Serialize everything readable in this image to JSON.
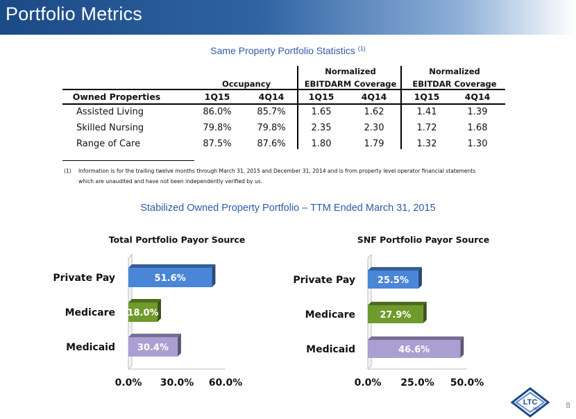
{
  "header": {
    "title": "Portfolio Metrics"
  },
  "stats": {
    "title": "Same Property Portfolio Statistics",
    "title_note": "(1)",
    "group_headers": {
      "occupancy": "Occupancy",
      "ebitdarm_line1": "Normalized",
      "ebitdarm_line2": "EBITDARM Coverage",
      "ebitdar_line1": "Normalized",
      "ebitdar_line2": "EBITDAR Coverage"
    },
    "columns": [
      "Owned Properties",
      "1Q15",
      "4Q14",
      "1Q15",
      "4Q14",
      "1Q15",
      "4Q14"
    ],
    "rows": [
      [
        "Assisted Living",
        "86.0%",
        "85.7%",
        "1.65",
        "1.62",
        "1.41",
        "1.39"
      ],
      [
        "Skilled Nursing",
        "79.8%",
        "79.8%",
        "2.35",
        "2.30",
        "1.72",
        "1.68"
      ],
      [
        "Range of Care",
        "87.5%",
        "87.6%",
        "1.80",
        "1.79",
        "1.32",
        "1.30"
      ]
    ],
    "footnote_marker": "(1)",
    "footnote_line1": "Information is for the trailing twelve months through March 31, 2015 and December 31, 2014 and is from property level operator financial statements",
    "footnote_line2": "which are unaudited and have not been independently verified by us."
  },
  "stabilized_title": "Stabilized Owned Property Portfolio – TTM Ended March 31, 2015",
  "chart_data": [
    {
      "type": "bar",
      "orientation": "horizontal",
      "title": "Total Portfolio Payor Source",
      "categories": [
        "Private Pay",
        "Medicare",
        "Medicaid"
      ],
      "values": [
        51.6,
        18.0,
        30.4
      ],
      "value_labels": [
        "51.6%",
        "18.0%",
        "30.4%"
      ],
      "colors": [
        "#4a86d8",
        "#6f9a2c",
        "#a99fd0"
      ],
      "xlim": [
        0,
        60
      ],
      "ticks": [
        0,
        30,
        60
      ],
      "tick_labels": [
        "0.0%",
        "30.0%",
        "60.0%"
      ],
      "grid": false
    },
    {
      "type": "bar",
      "orientation": "horizontal",
      "title": "SNF Portfolio Payor Source",
      "categories": [
        "Private Pay",
        "Medicare",
        "Medicaid"
      ],
      "values": [
        25.5,
        27.9,
        46.6
      ],
      "value_labels": [
        "25.5%",
        "27.9%",
        "46.6%"
      ],
      "colors": [
        "#4a86d8",
        "#6f9a2c",
        "#a99fd0"
      ],
      "xlim": [
        0,
        50
      ],
      "ticks": [
        0,
        25,
        50
      ],
      "tick_labels": [
        "0.0%",
        "25.0%",
        "50.0%"
      ],
      "grid": false
    }
  ],
  "footer": {
    "page_number": "8",
    "logo_text": "LTC",
    "logo_sub": "REIT"
  }
}
